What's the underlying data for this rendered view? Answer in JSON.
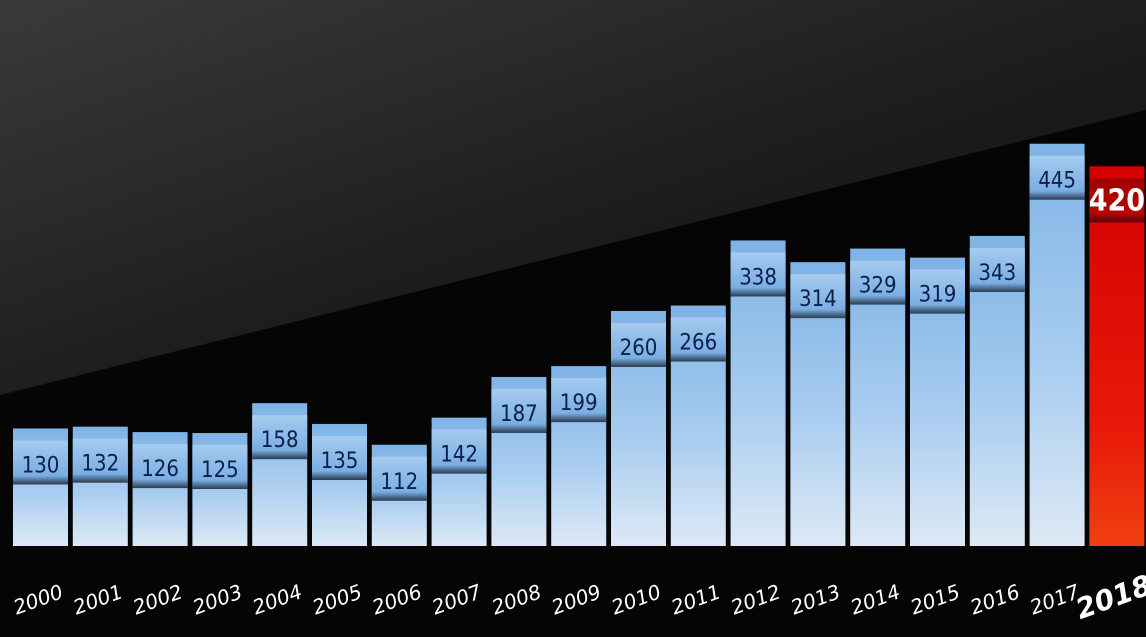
{
  "chart_data": {
    "type": "bar",
    "title": "",
    "xlabel": "",
    "ylabel": "",
    "categories": [
      "2000",
      "2001",
      "2002",
      "2003",
      "2004",
      "2005",
      "2006",
      "2007",
      "2008",
      "2009",
      "2010",
      "2011",
      "2012",
      "2013",
      "2014",
      "2015",
      "2016",
      "2017",
      "2018"
    ],
    "values": [
      130,
      132,
      126,
      125,
      158,
      135,
      112,
      142,
      187,
      199,
      260,
      266,
      338,
      314,
      329,
      319,
      343,
      445,
      420
    ],
    "highlight": {
      "category": "2018",
      "color": "#e01010"
    },
    "bar_color": "#8fbde9",
    "value_label_color": "#0c1f4a",
    "tick_label_color": "#ffffff",
    "background_color": "#050505",
    "grid": false,
    "legend": false
  }
}
